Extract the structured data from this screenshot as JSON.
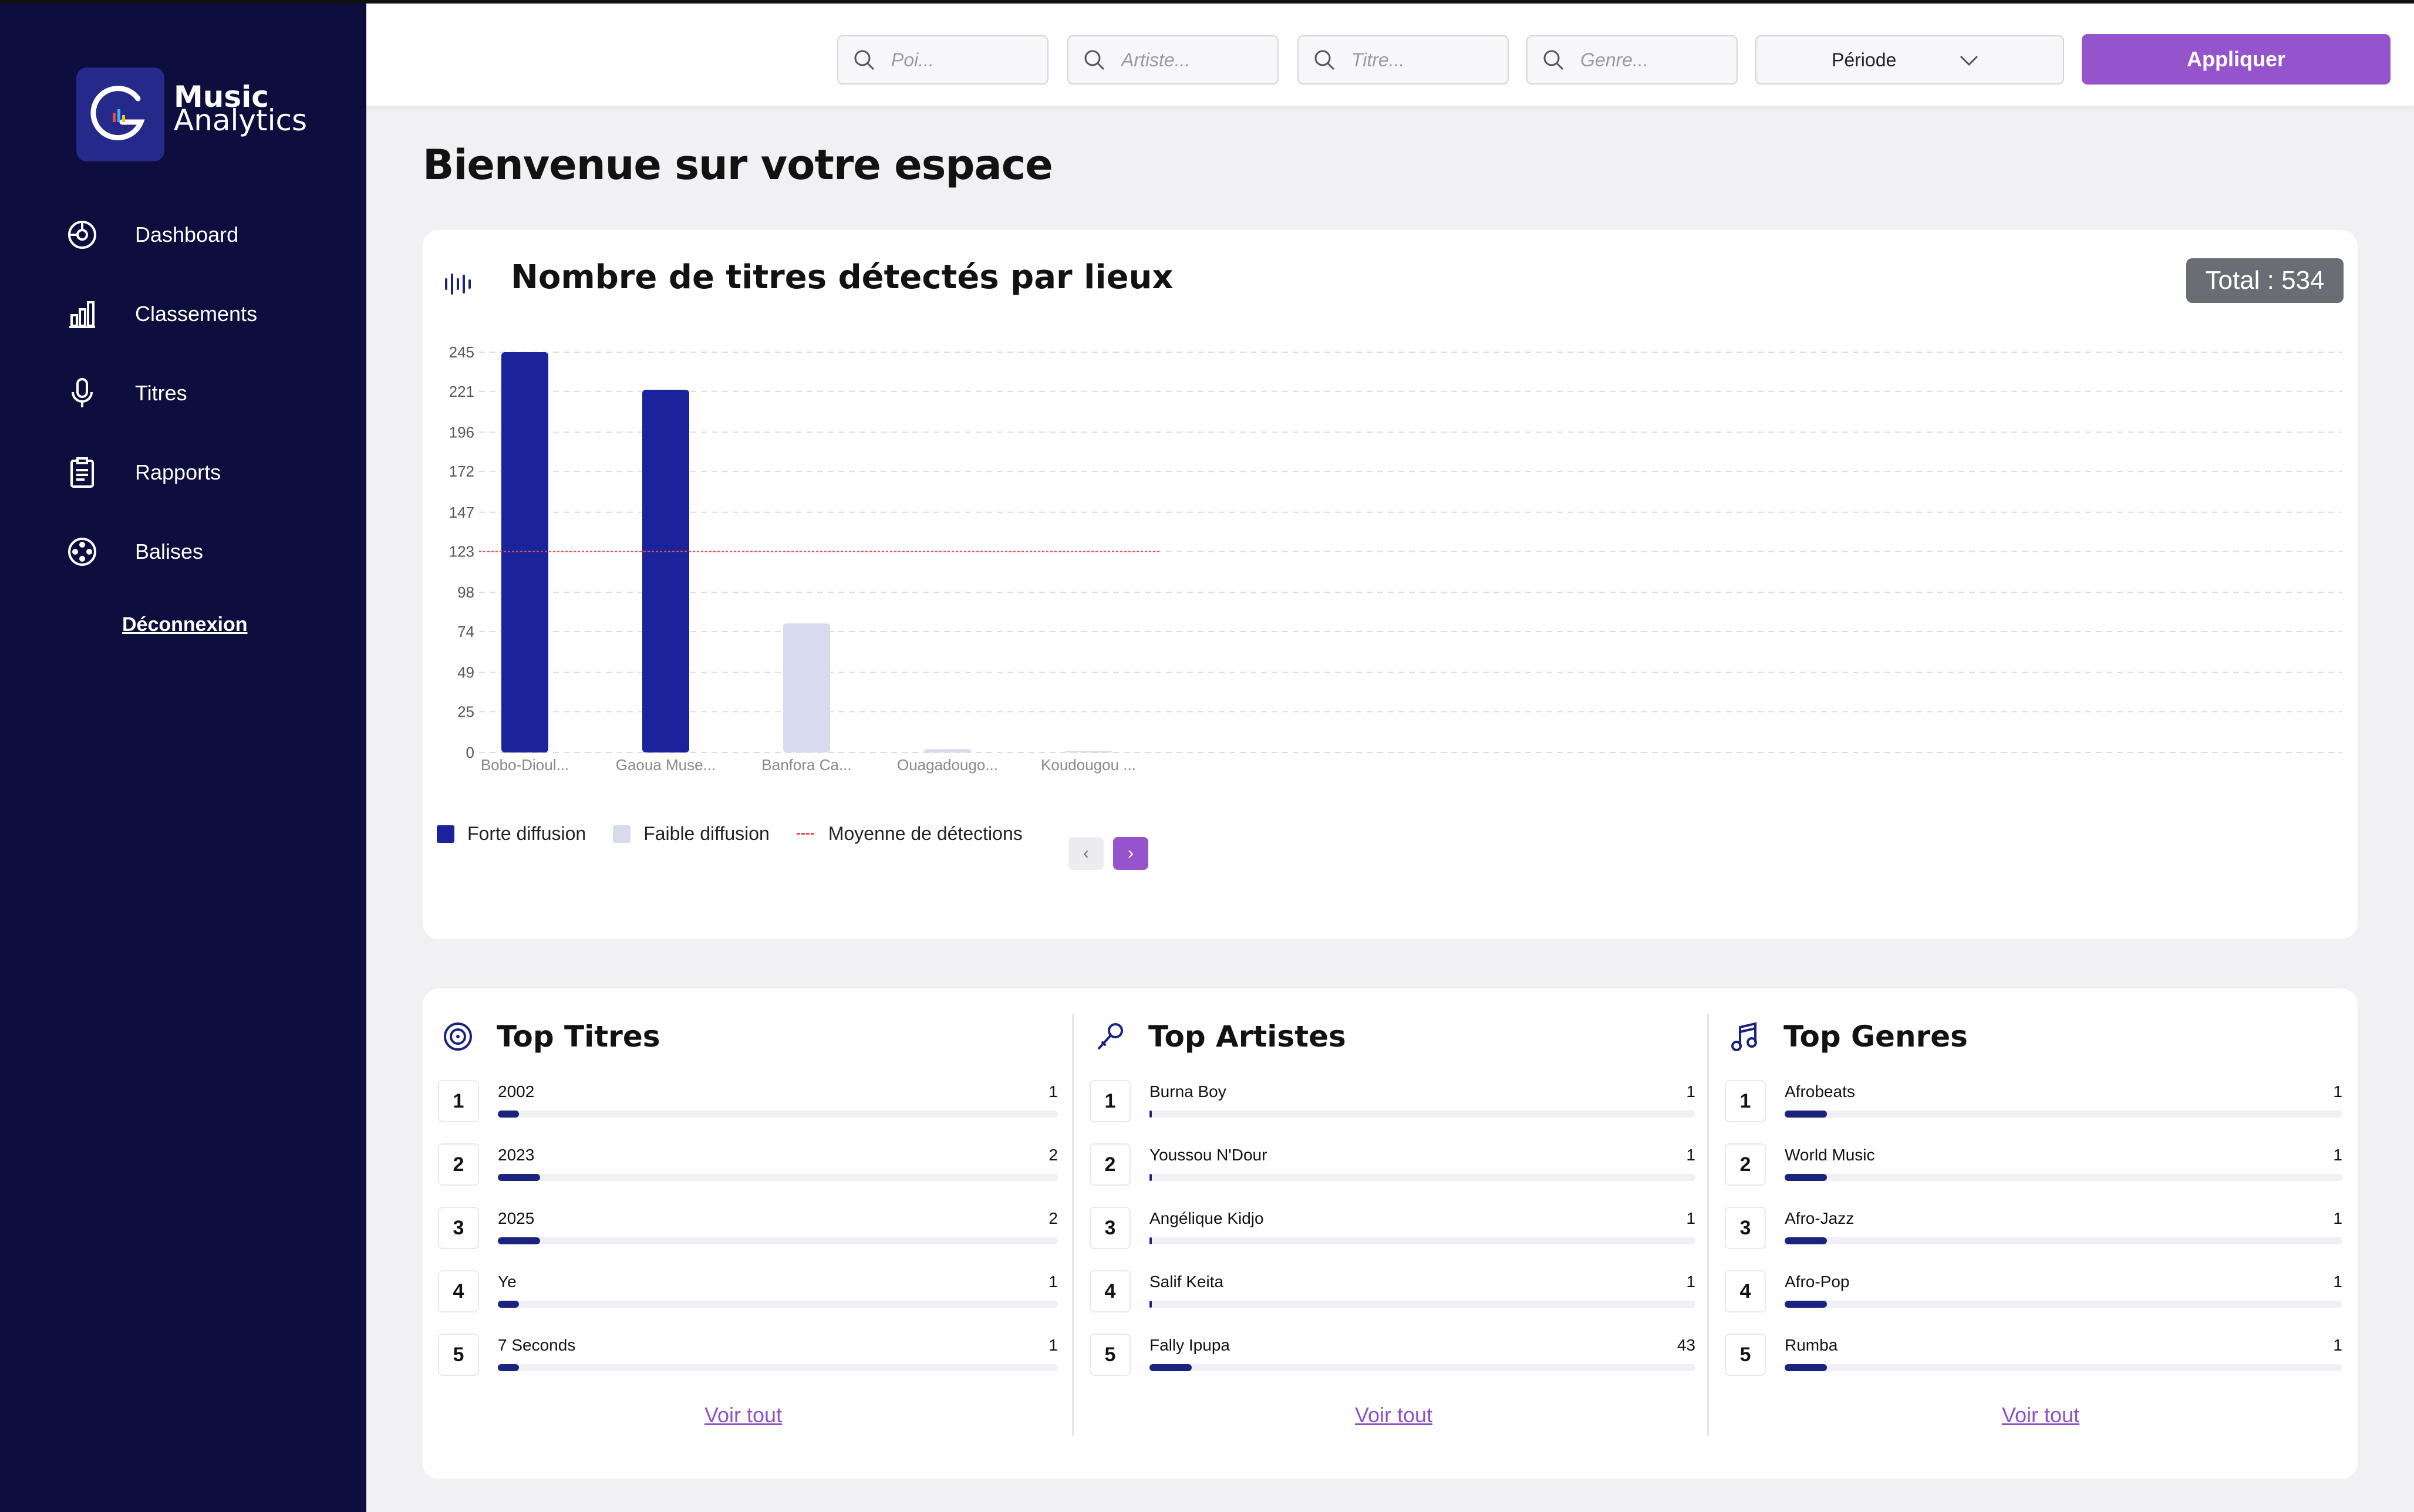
{
  "app": {
    "logo_line1": "Music",
    "logo_line2": "Analytics"
  },
  "sidebar": {
    "items": [
      {
        "label": "Dashboard",
        "icon": "dashboard-icon"
      },
      {
        "label": "Classements",
        "icon": "chart-bars-icon"
      },
      {
        "label": "Titres",
        "icon": "microphone-icon"
      },
      {
        "label": "Rapports",
        "icon": "clipboard-icon"
      },
      {
        "label": "Balises",
        "icon": "film-reel-icon"
      }
    ],
    "logout": "Déconnexion"
  },
  "filters": {
    "poi_placeholder": "Poi...",
    "artist_placeholder": "Artiste...",
    "title_placeholder": "Titre...",
    "genre_placeholder": "Genre...",
    "period_label": "Période",
    "apply_label": "Appliquer"
  },
  "page": {
    "welcome": "Bienvenue sur votre espace"
  },
  "detections": {
    "title": "Nombre de titres détectés par lieux",
    "total": "Total : 534",
    "legend": {
      "high": "Forte diffusion",
      "low": "Faible diffusion",
      "avg": "Moyenne de détections"
    },
    "prev": "‹",
    "next": "›"
  },
  "chart_data": {
    "type": "bar",
    "categories": [
      "Bobo-Dioul...",
      "Gaoua Muse...",
      "Banfora Ca...",
      "Ouagadougo...",
      "Koudougou ..."
    ],
    "values": [
      245,
      222,
      79,
      2,
      1
    ],
    "levels": [
      "high",
      "high",
      "low",
      "low",
      "low"
    ],
    "average": 123,
    "yticks": [
      0,
      25,
      49,
      74,
      98,
      123,
      147,
      172,
      196,
      221,
      245
    ],
    "ylim": [
      0,
      245
    ],
    "grid": true,
    "colors": {
      "high": "#1a239b",
      "low": "#d8dbee",
      "avg": "#e25050"
    }
  },
  "top_lists": [
    {
      "title": "Top Titres",
      "icon": "vinyl-disc-icon",
      "items": [
        {
          "name": "2002",
          "value": 1
        },
        {
          "name": "2023",
          "value": 2
        },
        {
          "name": "2025",
          "value": 2
        },
        {
          "name": "Ye",
          "value": 1
        },
        {
          "name": "7 Seconds",
          "value": 1
        }
      ],
      "see_all": "Voir tout"
    },
    {
      "title": "Top Artistes",
      "icon": "microphone-icon",
      "items": [
        {
          "name": "Burna Boy",
          "value": 1
        },
        {
          "name": "Youssou N'Dour",
          "value": 1
        },
        {
          "name": "Angélique Kidjo",
          "value": 1
        },
        {
          "name": "Salif Keita",
          "value": 1
        },
        {
          "name": "Fally Ipupa",
          "value": 43
        }
      ],
      "see_all": "Voir tout"
    },
    {
      "title": "Top Genres",
      "icon": "music-note-icon",
      "items": [
        {
          "name": "Afrobeats",
          "value": 1
        },
        {
          "name": "World Music",
          "value": 1
        },
        {
          "name": "Afro-Jazz",
          "value": 1
        },
        {
          "name": "Afro-Pop",
          "value": 1
        },
        {
          "name": "Rumba",
          "value": 1
        }
      ],
      "see_all": "Voir tout"
    }
  ]
}
